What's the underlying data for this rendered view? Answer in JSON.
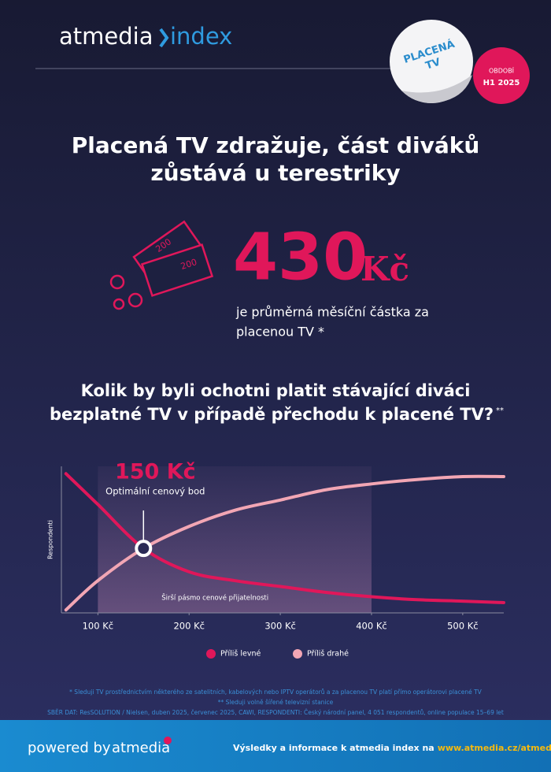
{
  "header": {
    "logo": "atmedia",
    "logo_index": "index",
    "sticker": [
      "PLACENÁ",
      "TV"
    ],
    "period_label": "OBDOBÍ",
    "period": "H1 2025"
  },
  "headline": [
    "Placená TV zdražuje, část diváků",
    "zůstává u terestriky"
  ],
  "banknotes": [
    "200",
    "200"
  ],
  "stat": {
    "value": "430",
    "unit": "Kč",
    "caption": [
      "je průměrná měsíční částka za",
      "placenou TV *"
    ]
  },
  "question": {
    "lines": [
      "Kolik by byli ochotni platit stávající diváci",
      "bezplatné TV v případě přechodu k placené TV?"
    ],
    "mark": "**"
  },
  "chart_data": {
    "type": "line",
    "ylabel": "Respondenti",
    "optimal": {
      "value": 150,
      "label": "150 Kč"
    },
    "optimal_caption": "Optimální cenový bod",
    "band": {
      "range": [
        100,
        400
      ],
      "label": "Širší pásmo cenové přijatelnosti"
    },
    "x": [
      65,
      100,
      150,
      200,
      250,
      300,
      350,
      400,
      450,
      500,
      545
    ],
    "series": [
      {
        "name": "Příliš levné",
        "color": "#e0175a",
        "values": [
          95,
          74,
          44,
          28,
          22,
          18,
          14,
          11,
          9,
          8,
          7
        ]
      },
      {
        "name": "Příliš drahé",
        "color": "#f2a6b4",
        "values": [
          2,
          22,
          44,
          59,
          70,
          77,
          84,
          88,
          91,
          93,
          93
        ]
      }
    ],
    "xlim": [
      60,
      545
    ],
    "ylim": [
      0,
      100
    ],
    "xticks": [
      {
        "value": 100,
        "label": "100 Kč"
      },
      {
        "value": 200,
        "label": "200 Kč"
      },
      {
        "value": 300,
        "label": "300 Kč"
      },
      {
        "value": 400,
        "label": "400 Kč"
      },
      {
        "value": 500,
        "label": "500 Kč"
      }
    ]
  },
  "footnotes": [
    "* Sleduji TV prostřednictvím některého ze satelitních, kabelových nebo IPTV operátorů a za placenou TV platí přímo operátorovi placené TV",
    "** Sleduji volně šířené televizní stanice",
    "SBĚR DAT: ResSOLUTION / Nielsen, duben 2025, červenec 2025, CAWI, RESPONDENTI: Český národní panel, 4 051 respondentů, online populace 15–69 let"
  ],
  "footer": {
    "powered": "powered by",
    "brand": "atmedia",
    "text": "Výsledky a informace k atmedia index na",
    "link": "www.atmedia.cz/atmedia-index"
  }
}
